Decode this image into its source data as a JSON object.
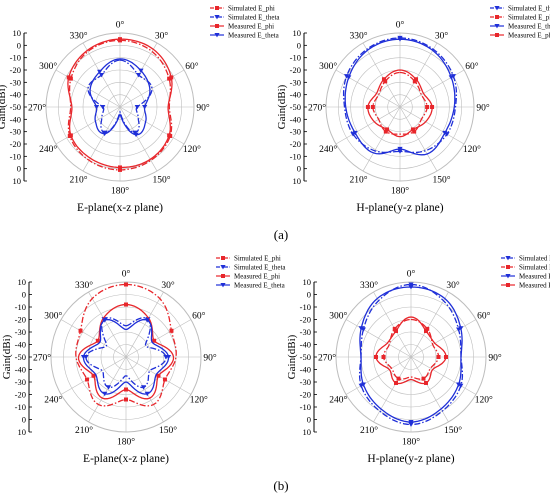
{
  "colors": {
    "red": "#e8262b",
    "blue": "#1f2fd8",
    "grid": "#bdbdbd",
    "axis": "#000000",
    "text": "#000000"
  },
  "angle_labels": [
    "0°",
    "30°",
    "60°",
    "90°",
    "120°",
    "150°",
    "180°",
    "210°",
    "240°",
    "270°",
    "300°",
    "330°"
  ],
  "panel_labels": [
    "(a)",
    "(b)"
  ],
  "chart_data": [
    {
      "type": "polar-line",
      "xlabel": "E-plane(x-z plane)",
      "ylabel": "Gain(dBi)",
      "rlim": [
        -50,
        10
      ],
      "rticks": [
        10,
        0,
        -10,
        -20,
        -30,
        -40,
        -50,
        -40,
        -30,
        -20,
        -10,
        0,
        10
      ],
      "theta_deg": [
        0,
        30,
        60,
        90,
        120,
        150,
        180,
        210,
        240,
        270,
        300,
        330
      ],
      "series": [
        {
          "name": "Simulated E_phi",
          "color": "#e8262b",
          "dash": "6,2,1.5,2",
          "marker": "square",
          "values": [
            4,
            2,
            -4,
            -10,
            -3,
            0,
            1,
            0,
            -3,
            -10,
            -4,
            2
          ]
        },
        {
          "name": "Simulated E_theta",
          "color": "#1f2fd8",
          "dash": "6,2,1.5,2",
          "marker": "triangle-down",
          "values": [
            -12,
            -20,
            -20,
            -36,
            -33,
            -26,
            -46,
            -26,
            -33,
            -36,
            -20,
            -20
          ]
        },
        {
          "name": "Measured E_phi",
          "color": "#e8262b",
          "dash": "",
          "marker": "square",
          "values": [
            5,
            4,
            -2,
            -11,
            -4,
            -1,
            -1,
            -2,
            -4,
            -11,
            -2,
            3
          ]
        },
        {
          "name": "Measured E_theta",
          "color": "#1f2fd8",
          "dash": "",
          "marker": "triangle-down",
          "values": [
            -11,
            -16,
            -22,
            -30,
            -26,
            -24,
            -44,
            -25,
            -27,
            -31,
            -22,
            -17
          ]
        }
      ]
    },
    {
      "type": "polar-line",
      "xlabel": "H-plane(y-z plane)",
      "ylabel": "Gain(dBi)",
      "rlim": [
        -50,
        10
      ],
      "rticks": [
        10,
        0,
        -10,
        -20,
        -30,
        -40,
        -50,
        -40,
        -30,
        -20,
        -10,
        0,
        10
      ],
      "theta_deg": [
        0,
        30,
        60,
        90,
        120,
        150,
        180,
        210,
        240,
        270,
        300,
        330
      ],
      "series": [
        {
          "name": "Simulated E_theta",
          "color": "#1f2fd8",
          "dash": "6,2,1.5,2",
          "marker": "triangle-down",
          "values": [
            6,
            4,
            0,
            -5,
            -6,
            -9,
            -14,
            -9,
            -6,
            -5,
            0,
            4
          ]
        },
        {
          "name": "Simulated E_phi",
          "color": "#e8262b",
          "dash": "6,2,1.5,2",
          "marker": "square",
          "values": [
            -22,
            -26,
            -30,
            -28,
            -30,
            -27,
            -28,
            -27,
            -30,
            -28,
            -30,
            -26
          ]
        },
        {
          "name": "Measured E_theta",
          "color": "#1f2fd8",
          "dash": "",
          "marker": "triangle-down",
          "values": [
            5,
            3,
            -2,
            -6,
            -8,
            -6,
            -16,
            -7,
            -8,
            -6,
            -2,
            3
          ]
        },
        {
          "name": "Measured E_phi",
          "color": "#e8262b",
          "dash": "",
          "marker": "square",
          "values": [
            -20,
            -24,
            -28,
            -24,
            -26,
            -29,
            -26,
            -29,
            -26,
            -24,
            -28,
            -24
          ]
        }
      ]
    },
    {
      "type": "polar-line",
      "xlabel": "E-plane(x-z plane)",
      "ylabel": "Gain(dBi)",
      "rlim": [
        -50,
        10
      ],
      "rticks": [
        10,
        0,
        -10,
        -20,
        -30,
        -40,
        -50,
        -40,
        -30,
        -20,
        -10,
        0,
        10
      ],
      "theta_deg": [
        0,
        30,
        60,
        90,
        120,
        150,
        180,
        210,
        240,
        270,
        300,
        330
      ],
      "series": [
        {
          "name": "Simulated E_phi",
          "color": "#e8262b",
          "dash": "6,2,1.5,2",
          "marker": "square",
          "values": [
            8,
            4,
            -8,
            -10,
            -14,
            -6,
            -16,
            -6,
            -14,
            -10,
            -8,
            4
          ]
        },
        {
          "name": "Simulated E_theta",
          "color": "#1f2fd8",
          "dash": "6,2,1.5,2",
          "marker": "triangle-down",
          "values": [
            -25,
            -15,
            -32,
            -18,
            -28,
            -22,
            -35,
            -22,
            -28,
            -18,
            -32,
            -15
          ]
        },
        {
          "name": "Measured E_phi",
          "color": "#e8262b",
          "dash": "",
          "marker": "square",
          "values": [
            -8,
            -14,
            -24,
            -12,
            -20,
            -12,
            -24,
            -12,
            -20,
            -12,
            -24,
            -14
          ]
        },
        {
          "name": "Measured E_theta",
          "color": "#1f2fd8",
          "dash": "",
          "marker": "triangle-down",
          "values": [
            -28,
            -16,
            -26,
            -16,
            -22,
            -16,
            -30,
            -16,
            -22,
            -16,
            -26,
            -16
          ]
        }
      ]
    },
    {
      "type": "polar-line",
      "xlabel": "H-plane(y-z plane)",
      "ylabel": "Gain(dBi)",
      "rlim": [
        -50,
        10
      ],
      "rticks": [
        10,
        0,
        -10,
        -20,
        -30,
        -40,
        -50,
        -40,
        -30,
        -20,
        -10,
        0,
        10
      ],
      "theta_deg": [
        0,
        30,
        60,
        90,
        120,
        150,
        180,
        210,
        240,
        270,
        300,
        330
      ],
      "series": [
        {
          "name": "Simulated E_theta",
          "color": "#1f2fd8",
          "dash": "6,2,1.5,2",
          "marker": "triangle-down",
          "values": [
            8,
            2,
            -6,
            -10,
            -4,
            0,
            4,
            0,
            -4,
            -10,
            -6,
            2
          ]
        },
        {
          "name": "Simulated E_phi",
          "color": "#e8262b",
          "dash": "6,2,1.5,2",
          "marker": "square",
          "values": [
            -20,
            -24,
            -30,
            -28,
            -32,
            -30,
            -34,
            -30,
            -32,
            -28,
            -30,
            -24
          ]
        },
        {
          "name": "Measured E_theta",
          "color": "#1f2fd8",
          "dash": "",
          "marker": "triangle-down",
          "values": [
            6,
            4,
            -4,
            -10,
            -6,
            -2,
            2,
            -2,
            -6,
            -10,
            -4,
            4
          ]
        },
        {
          "name": "Measured E_phi",
          "color": "#e8262b",
          "dash": "",
          "marker": "square",
          "values": [
            -18,
            -26,
            -28,
            -22,
            -30,
            -26,
            -32,
            -26,
            -30,
            -22,
            -28,
            -26
          ]
        }
      ]
    }
  ]
}
